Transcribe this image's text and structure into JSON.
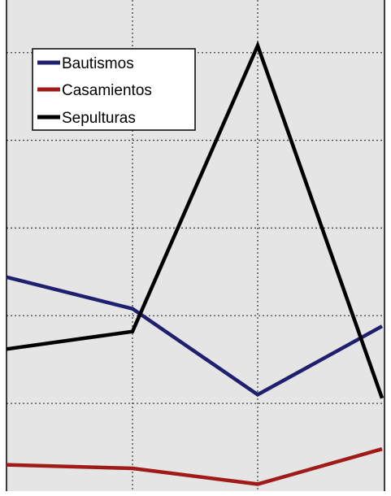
{
  "chart_data": {
    "type": "line",
    "x": [
      1,
      2,
      3,
      4
    ],
    "series": [
      {
        "name": "Bautismos",
        "color": "#1f1f6e",
        "values": [
          61,
          52,
          27.5,
          47
        ]
      },
      {
        "name": "Casamientos",
        "color": "#a11a1a",
        "values": [
          7.5,
          6.5,
          2,
          12
        ]
      },
      {
        "name": "Sepulturas",
        "color": "#000000",
        "values": [
          40.5,
          45.5,
          127,
          26.5
        ]
      }
    ],
    "ylim": [
      0,
      140
    ],
    "y_gridlines": [
      25,
      50,
      75,
      100,
      125
    ],
    "grid": true,
    "legend_position": "top-left",
    "plot_background": "#e5e5e5"
  }
}
